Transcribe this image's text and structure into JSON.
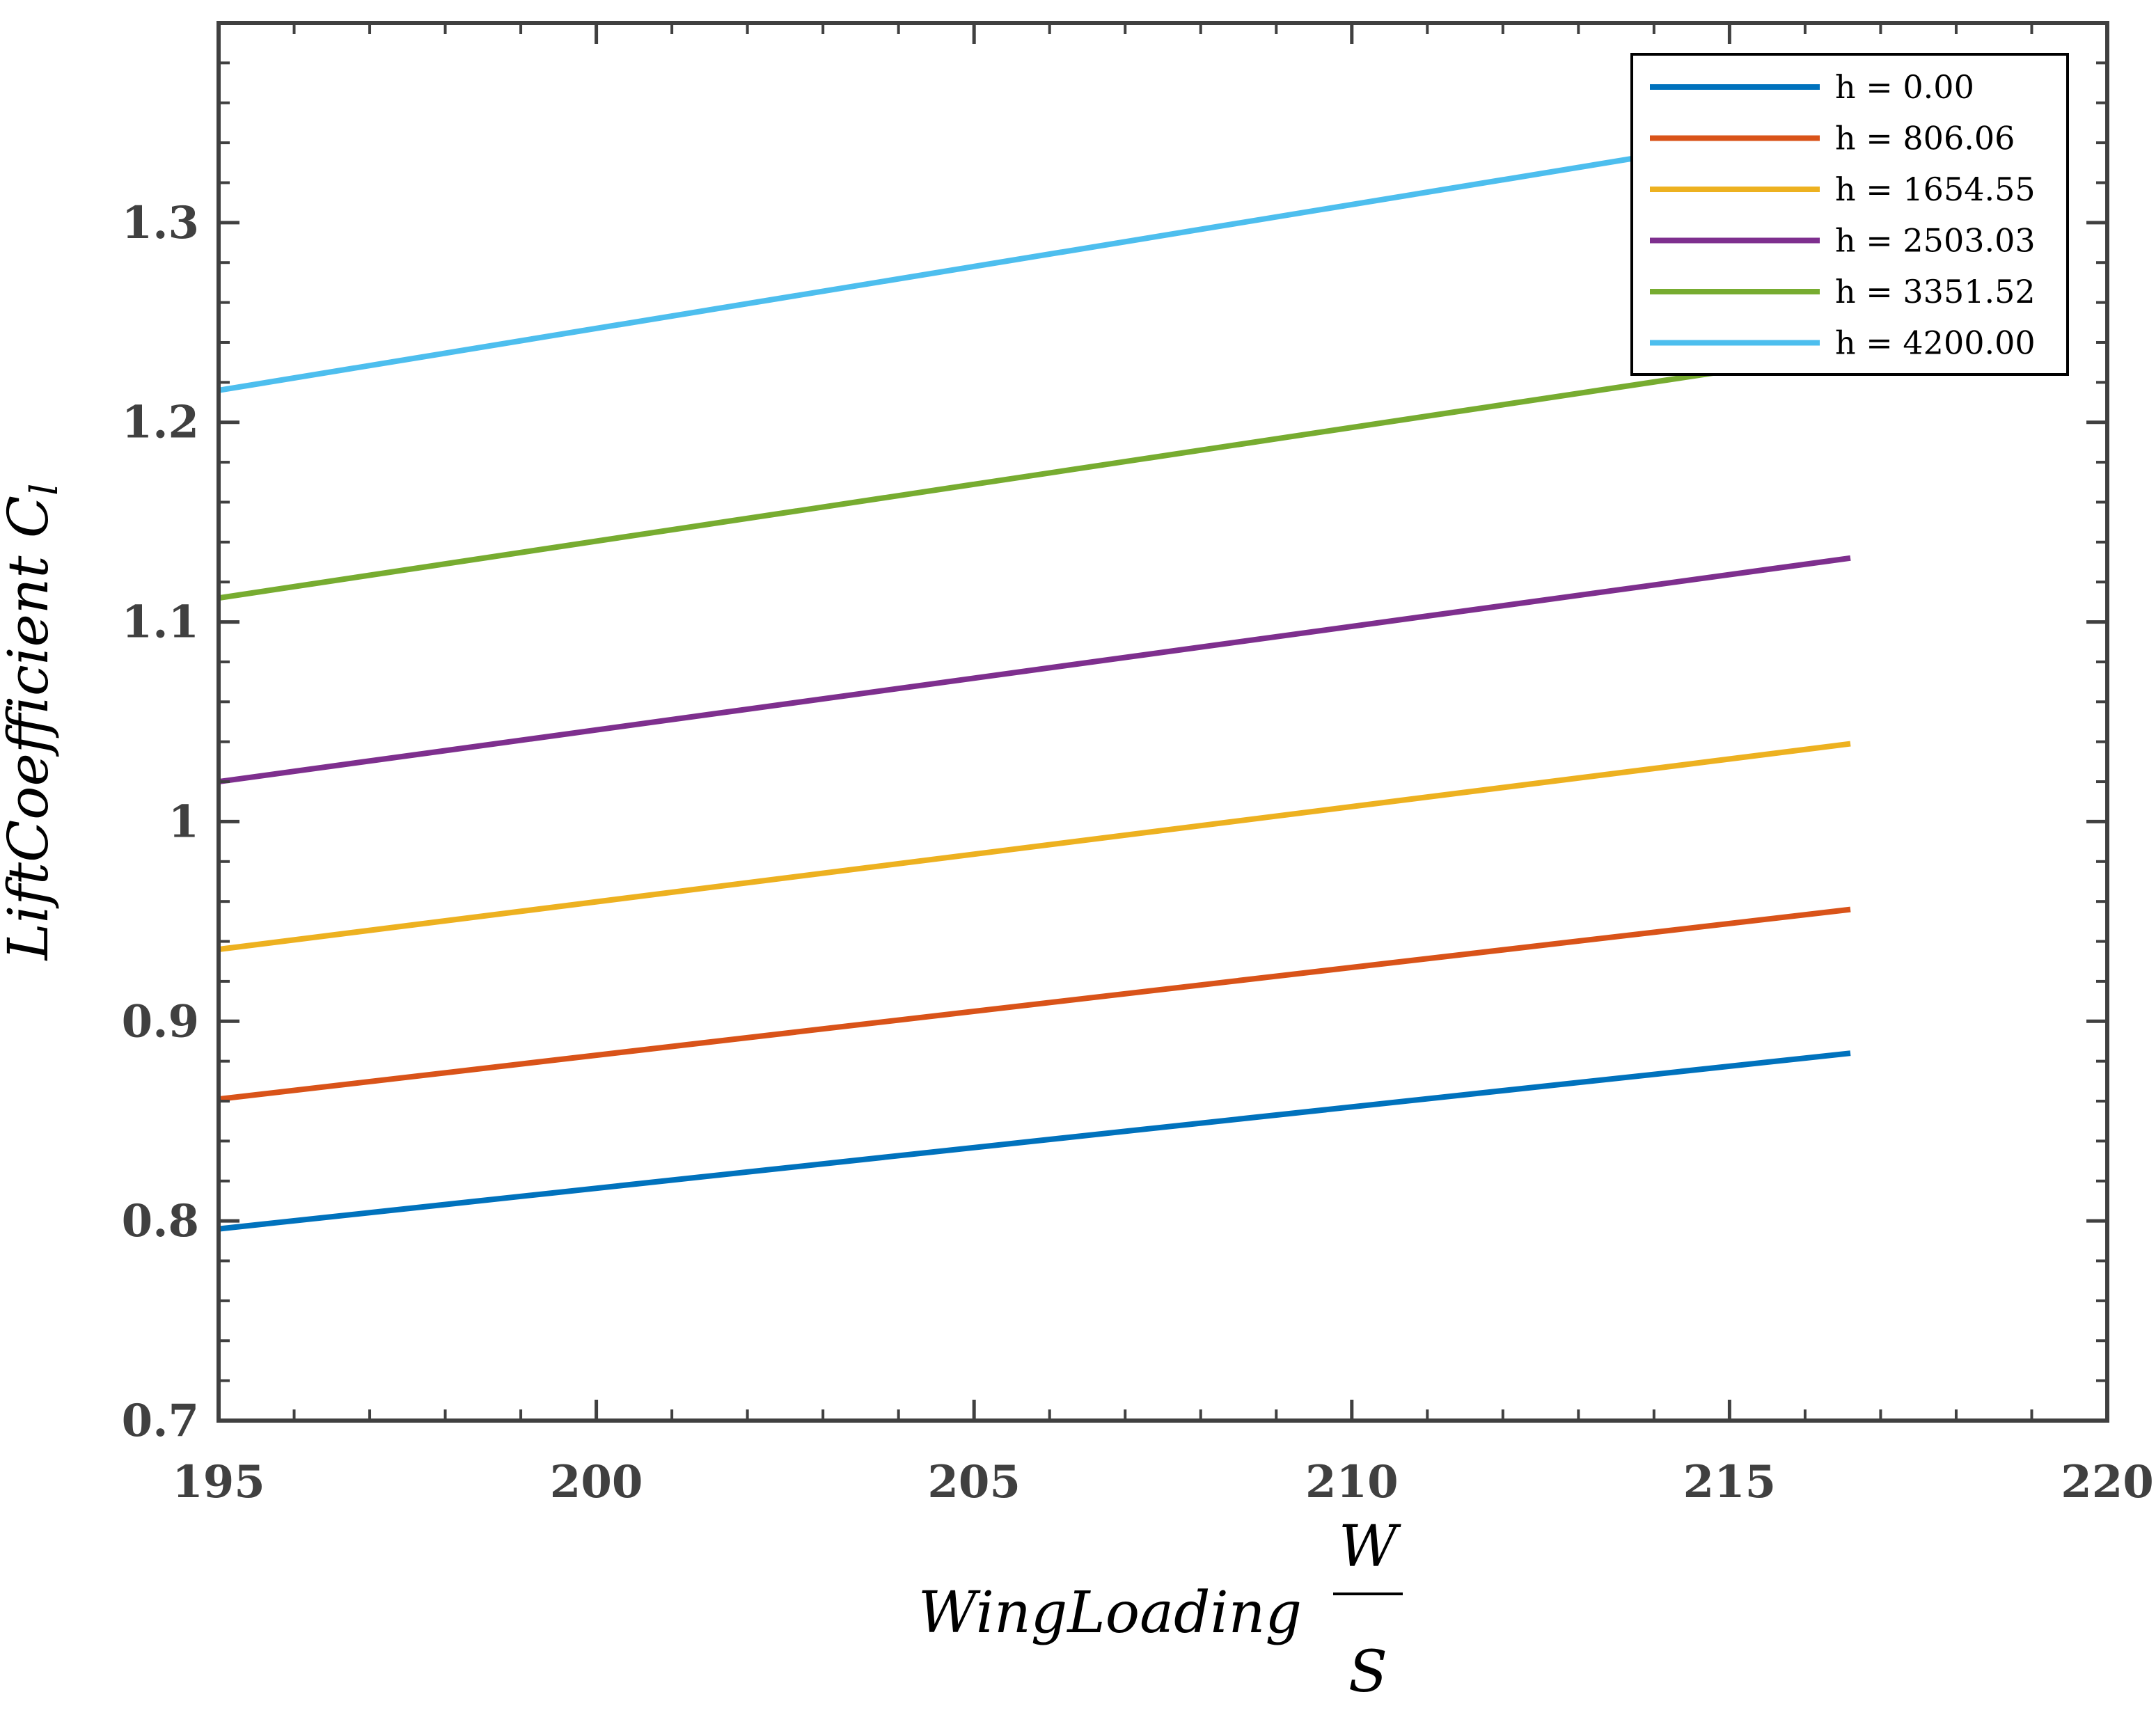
{
  "chart_data": {
    "type": "line",
    "title": "",
    "xlabel": "WingLoading",
    "xlabel_fraction": {
      "numerator": "W",
      "denominator": "S"
    },
    "ylabel": "LiftCoefficient",
    "ylabel_symbol": {
      "base": "C",
      "subscript": "l"
    },
    "xlim": [
      195,
      220
    ],
    "ylim": [
      0.7,
      1.4
    ],
    "xticks": [
      195,
      200,
      205,
      210,
      215,
      220
    ],
    "xtick_labels": [
      "195",
      "200",
      "205",
      "210",
      "215",
      "220"
    ],
    "yticks": [
      0.7,
      0.8,
      0.9,
      1.0,
      1.1,
      1.2,
      1.3
    ],
    "ytick_labels": [
      "0.7",
      "0.8",
      "0.9",
      "1",
      "1.1",
      "1.2",
      "1.3"
    ],
    "grid": false,
    "legend_position": "top-right",
    "series": [
      {
        "name": "h = 0.00",
        "color": "#0072BD",
        "x": [
          195,
          216.6
        ],
        "y": [
          0.796,
          0.884
        ]
      },
      {
        "name": "h = 806.06",
        "color": "#D95319",
        "x": [
          195,
          216.6
        ],
        "y": [
          0.861,
          0.956
        ]
      },
      {
        "name": "h = 1654.55",
        "color": "#EDB120",
        "x": [
          195,
          216.6
        ],
        "y": [
          0.936,
          1.039
        ]
      },
      {
        "name": "h = 2503.03",
        "color": "#7E2F8E",
        "x": [
          195,
          216.6
        ],
        "y": [
          1.02,
          1.132
        ]
      },
      {
        "name": "h = 3351.52",
        "color": "#77AC30",
        "x": [
          195,
          216.6
        ],
        "y": [
          1.112,
          1.235
        ]
      },
      {
        "name": "h = 4200.00",
        "color": "#4DBEEE",
        "x": [
          195,
          216.6
        ],
        "y": [
          1.216,
          1.35
        ]
      }
    ]
  }
}
